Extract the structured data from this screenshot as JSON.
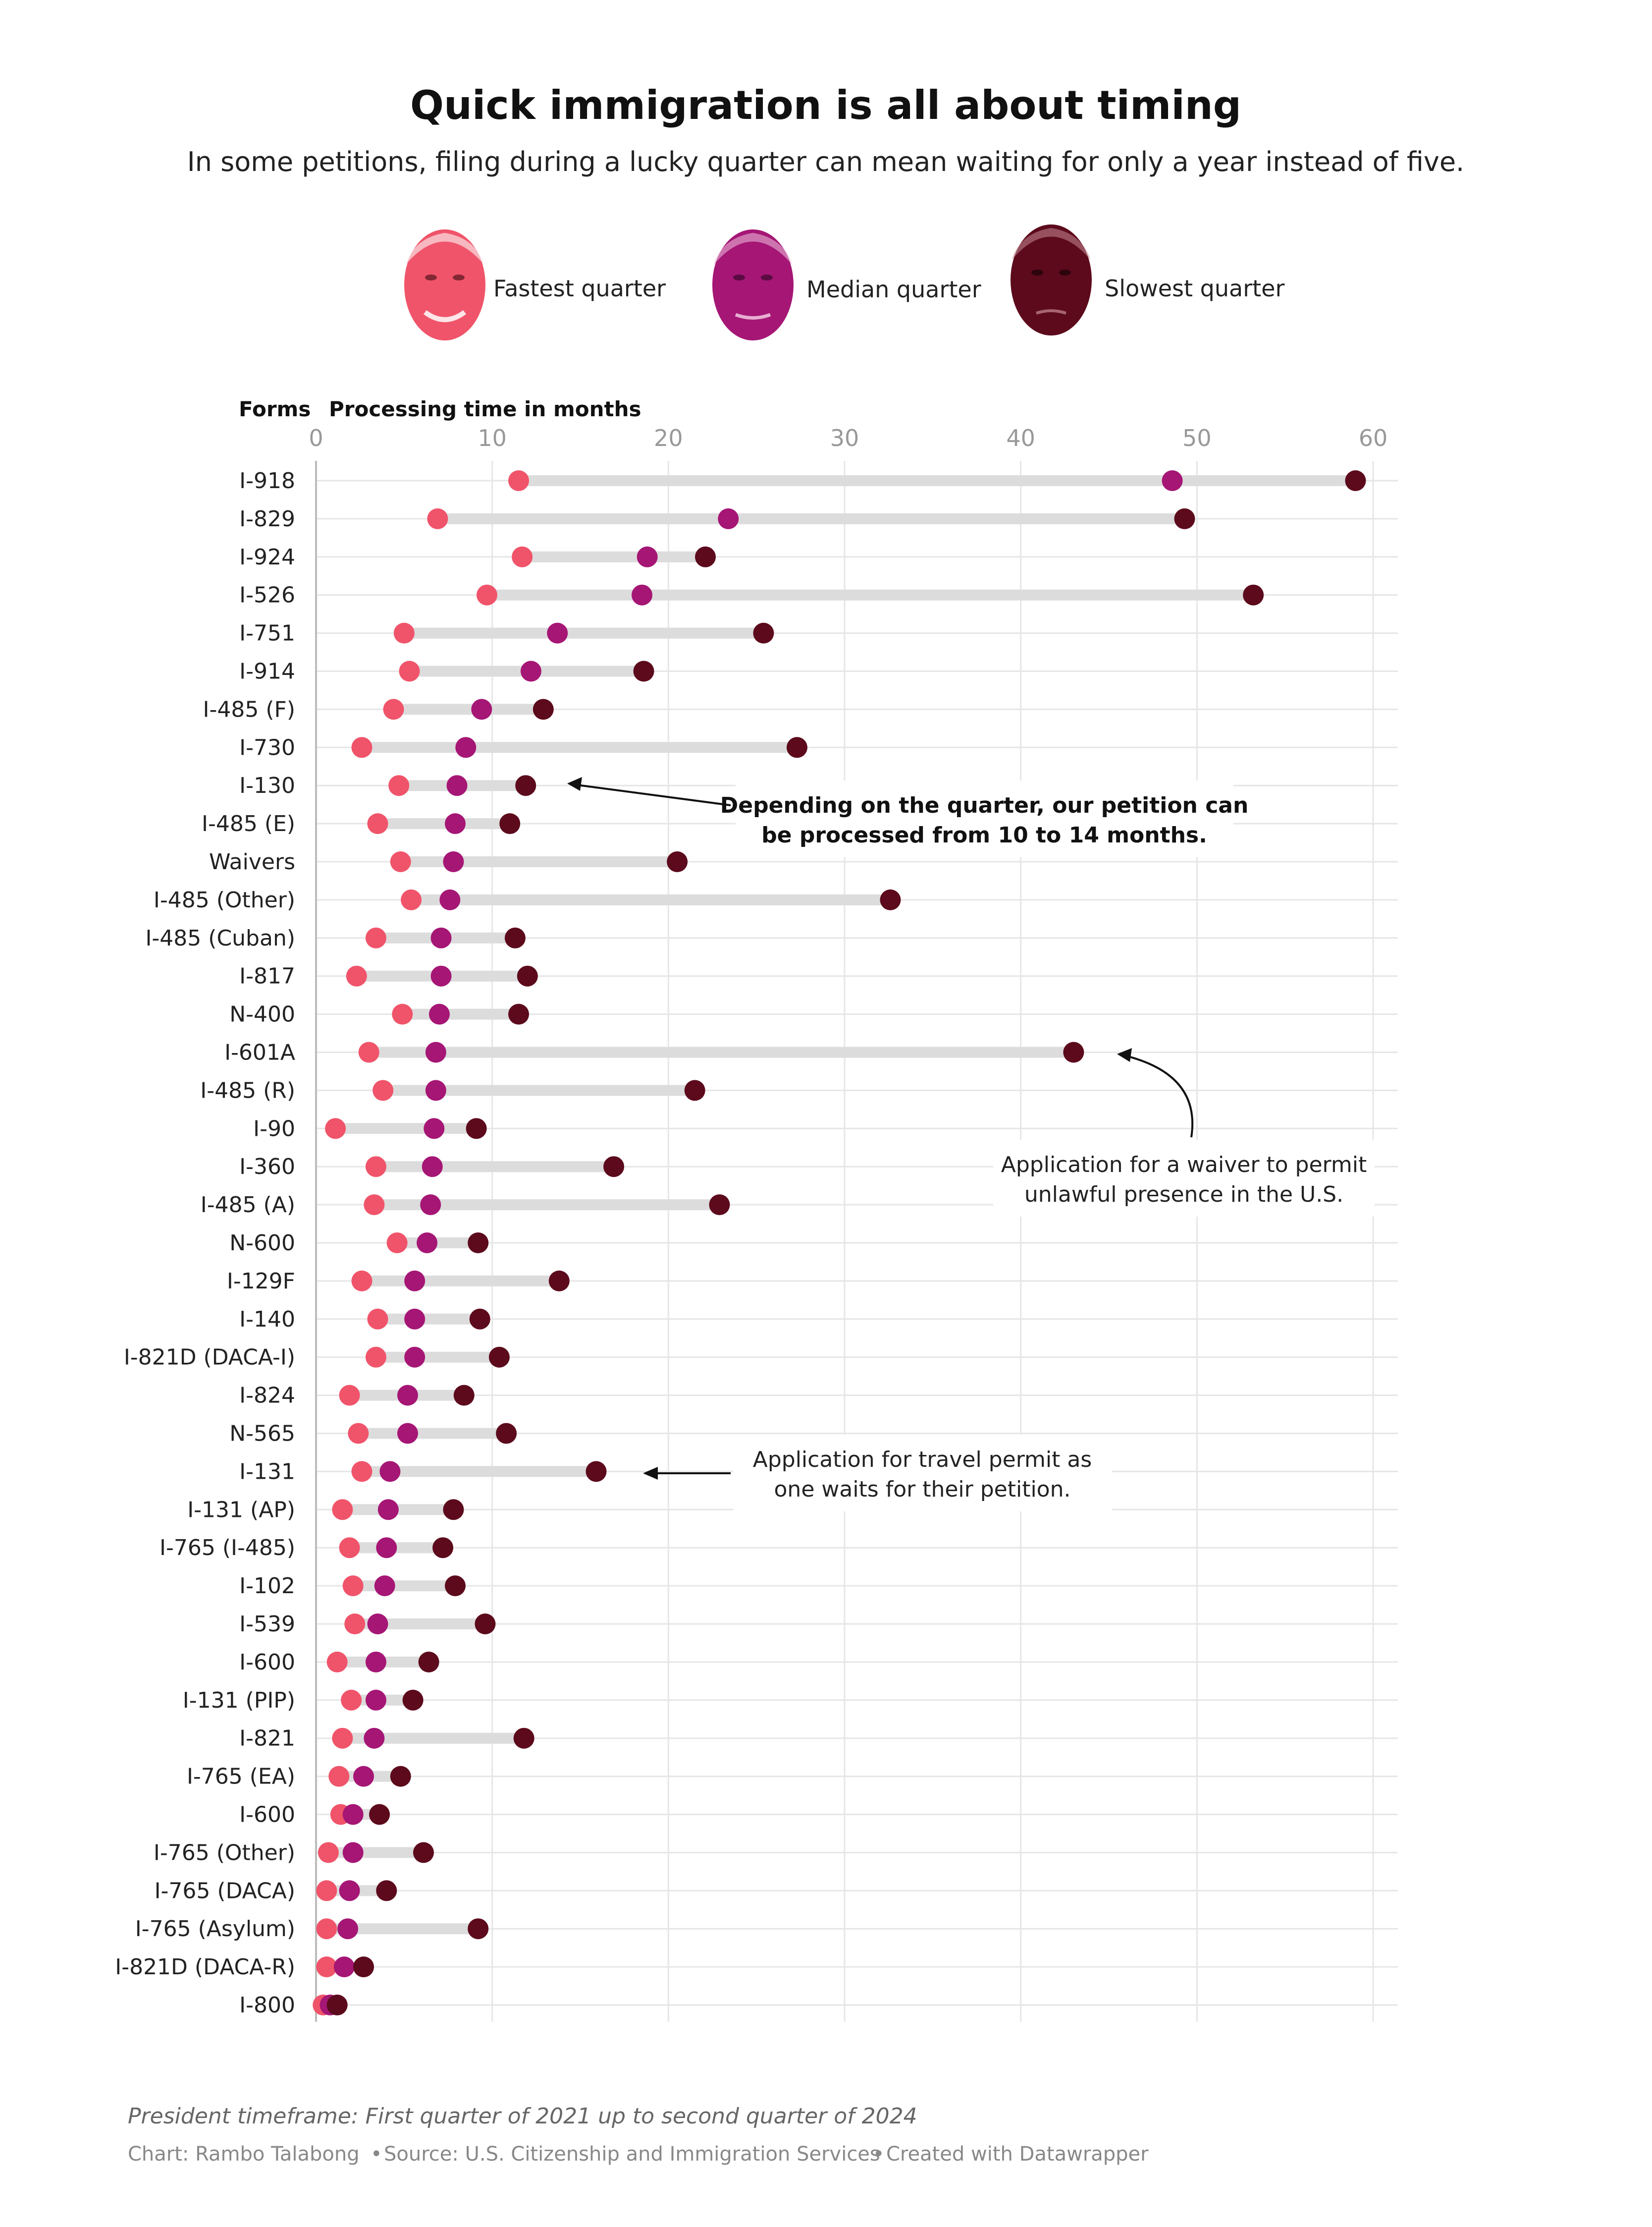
{
  "header": {
    "title": "Quick immigration is all about timing",
    "subtitle": "In some petitions, filing during a lucky quarter can mean waiting for only a year instead of five."
  },
  "legend": [
    {
      "label": "Fastest quarter",
      "color": "#f0546a"
    },
    {
      "label": "Median quarter",
      "color": "#a51675"
    },
    {
      "label": "Slowest quarter",
      "color": "#5c0a1c"
    }
  ],
  "annotations": [
    {
      "lines": [
        "Depending on the quarter, our petition can",
        "be processed from 10 to 14 months."
      ],
      "bold": true
    },
    {
      "lines": [
        "Application for a waiver to permit",
        "unlawful presence in the U.S."
      ],
      "bold": false
    },
    {
      "lines": [
        "Application for travel permit as",
        "one waits for their petition."
      ],
      "bold": false
    }
  ],
  "footer": {
    "note": "President timeframe: First quarter of 2021 up to second quarter of 2024",
    "credit_chart": "Chart: Rambo Talabong",
    "credit_source": "Source: U.S. Citizenship and Immigration Services",
    "credit_tool": "Created with Datawrapper"
  },
  "chart_data": {
    "type": "range-dot",
    "title": "Quick immigration is all about timing",
    "xlabel": "Processing time in months",
    "ylabel": "Forms",
    "xlim": [
      0,
      60
    ],
    "xticks": [
      0,
      10,
      20,
      30,
      40,
      50,
      60
    ],
    "grid": true,
    "legend_position": "top",
    "categories": [
      "I-918",
      "I-829",
      "I-924",
      "I-526",
      "I-751",
      "I-914",
      "I-485 (F)",
      "I-730",
      "I-130",
      "I-485 (E)",
      "Waivers",
      "I-485 (Other)",
      "I-485 (Cuban)",
      "I-817",
      "N-400",
      "I-601A",
      "I-485 (R)",
      "I-90",
      "I-360",
      "I-485 (A)",
      "N-600",
      "I-129F",
      "I-140",
      "I-821D (DACA-I)",
      "I-824",
      "N-565",
      "I-131",
      "I-131 (AP)",
      "I-765 (I-485)",
      "I-102",
      "I-539",
      "I-600",
      "I-131 (PIP)",
      "I-821",
      "I-765 (EA)",
      "I-600",
      "I-765 (Other)",
      "I-765 (DACA)",
      "I-765 (Asylum)",
      "I-821D (DACA-R)",
      "I-800"
    ],
    "series": [
      {
        "name": "Fastest quarter",
        "values": [
          11.5,
          6.9,
          11.7,
          9.7,
          5.0,
          5.3,
          4.4,
          2.6,
          4.7,
          3.5,
          4.8,
          5.4,
          3.4,
          2.3,
          4.9,
          3.0,
          3.8,
          1.1,
          3.4,
          3.3,
          4.6,
          2.6,
          3.5,
          3.4,
          1.9,
          2.4,
          2.6,
          1.5,
          1.9,
          2.1,
          2.2,
          1.2,
          2.0,
          1.5,
          1.3,
          1.4,
          0.7,
          0.6,
          0.6,
          0.6,
          0.4
        ]
      },
      {
        "name": "Median quarter",
        "values": [
          48.6,
          23.4,
          18.8,
          18.5,
          13.7,
          12.2,
          9.4,
          8.5,
          8.0,
          7.9,
          7.8,
          7.6,
          7.1,
          7.1,
          7.0,
          6.8,
          6.8,
          6.7,
          6.6,
          6.5,
          6.3,
          5.6,
          5.6,
          5.6,
          5.2,
          5.2,
          4.2,
          4.1,
          4.0,
          3.9,
          3.5,
          3.4,
          3.4,
          3.3,
          2.7,
          2.1,
          2.1,
          1.9,
          1.8,
          1.6,
          0.8
        ]
      },
      {
        "name": "Slowest quarter",
        "values": [
          59.0,
          49.3,
          22.1,
          53.2,
          25.4,
          18.6,
          12.9,
          27.3,
          11.9,
          11.0,
          20.5,
          32.6,
          11.3,
          12.0,
          11.5,
          43.0,
          21.5,
          9.1,
          16.9,
          22.9,
          9.2,
          13.8,
          9.3,
          10.4,
          8.4,
          10.8,
          15.9,
          7.8,
          7.2,
          7.9,
          9.6,
          6.4,
          5.5,
          11.8,
          4.8,
          3.6,
          6.1,
          4.0,
          9.2,
          2.7,
          1.2
        ]
      }
    ]
  }
}
